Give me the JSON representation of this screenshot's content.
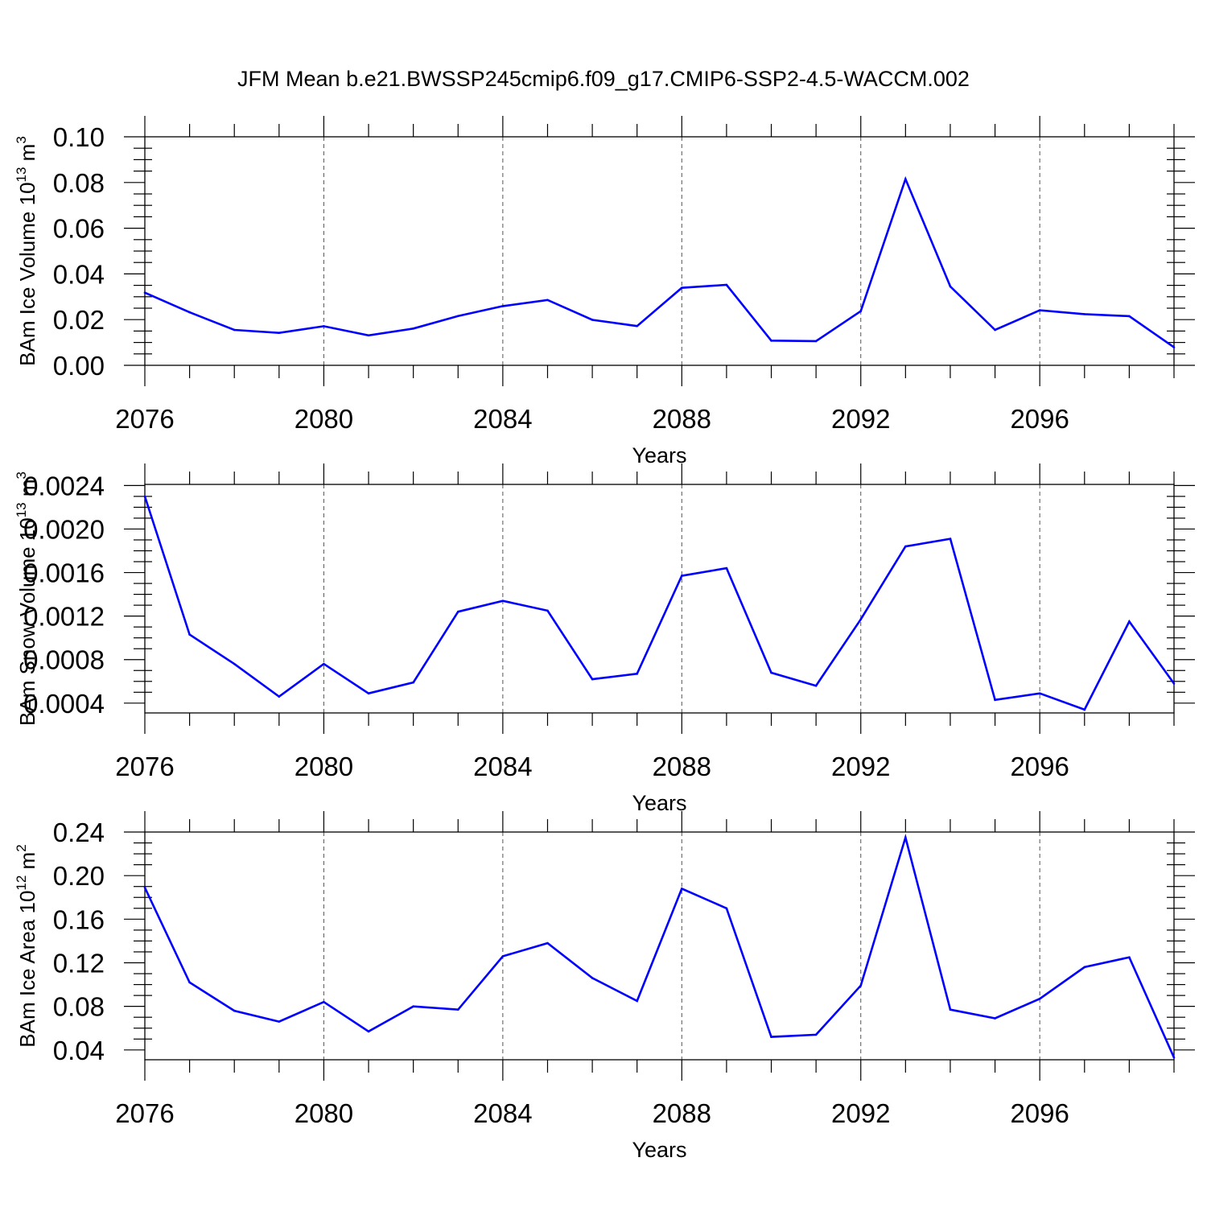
{
  "figure": {
    "title": "JFM Mean b.e21.BWSSP245cmip6.f09_g17.CMIP6-SSP2-4.5-WACCM.002"
  },
  "colors": {
    "series": "#0000ff",
    "axes": "#000000",
    "grid": "#555555"
  },
  "chart_data": [
    {
      "type": "line",
      "ylabel": "BAm Ice Volume 10^13 m^3",
      "ylabel_parts": {
        "base": "BAm Ice Volume 10",
        "exp1": "13",
        "mid": " m",
        "exp2": "3"
      },
      "xlabel": "Years",
      "xlim": [
        2076,
        2099
      ],
      "ylim": [
        0.0,
        0.1
      ],
      "y_ticks": [
        0.0,
        0.02,
        0.04,
        0.06,
        0.08,
        0.1
      ],
      "y_tick_labels": [
        "0.00",
        "0.02",
        "0.04",
        "0.06",
        "0.08",
        "0.10"
      ],
      "y_minor_step": 0.005,
      "x_ticks": [
        2076,
        2080,
        2084,
        2088,
        2092,
        2096
      ],
      "x_tick_labels": [
        "2076",
        "2080",
        "2084",
        "2088",
        "2092",
        "2096"
      ],
      "x_grid": [
        2080,
        2084,
        2088,
        2092,
        2096
      ],
      "x": [
        2076,
        2077,
        2078,
        2079,
        2080,
        2081,
        2082,
        2083,
        2084,
        2085,
        2086,
        2087,
        2088,
        2089,
        2090,
        2091,
        2092,
        2093,
        2094,
        2095,
        2096,
        2097,
        2098,
        2099
      ],
      "series": [
        {
          "name": "BAm Ice Volume",
          "values": [
            0.0318,
            0.0232,
            0.0155,
            0.0142,
            0.0171,
            0.0131,
            0.0161,
            0.0216,
            0.0259,
            0.0286,
            0.0199,
            0.0172,
            0.0339,
            0.0352,
            0.0108,
            0.0106,
            0.0237,
            0.0815,
            0.0345,
            0.0155,
            0.0241,
            0.0224,
            0.0215,
            0.0079
          ]
        }
      ]
    },
    {
      "type": "line",
      "ylabel": "BAm Snow Volume 10^13 m^3",
      "ylabel_parts": {
        "base": "BAm Snow Volume 10",
        "exp1": "13",
        "mid": " m",
        "exp2": "3"
      },
      "xlabel": "Years",
      "xlim": [
        2076,
        2099
      ],
      "ylim": [
        0.00031,
        0.00241
      ],
      "y_ticks": [
        0.0004,
        0.0008,
        0.0012,
        0.0016,
        0.002,
        0.0024
      ],
      "y_tick_labels": [
        "0.0004",
        "0.0008",
        "0.0012",
        "0.0016",
        "0.0020",
        "0.0024"
      ],
      "y_minor_step": 0.0001,
      "x_ticks": [
        2076,
        2080,
        2084,
        2088,
        2092,
        2096
      ],
      "x_tick_labels": [
        "2076",
        "2080",
        "2084",
        "2088",
        "2092",
        "2096"
      ],
      "x_grid": [
        2080,
        2084,
        2088,
        2092,
        2096
      ],
      "x": [
        2076,
        2077,
        2078,
        2079,
        2080,
        2081,
        2082,
        2083,
        2084,
        2085,
        2086,
        2087,
        2088,
        2089,
        2090,
        2091,
        2092,
        2093,
        2094,
        2095,
        2096,
        2097,
        2098,
        2099
      ],
      "series": [
        {
          "name": "BAm Snow Volume",
          "values": [
            0.0023,
            0.00103,
            0.00076,
            0.00046,
            0.00076,
            0.00049,
            0.00059,
            0.00124,
            0.00134,
            0.00125,
            0.00062,
            0.00067,
            0.00157,
            0.00164,
            0.00068,
            0.00056,
            0.00117,
            0.00184,
            0.00191,
            0.00043,
            0.00049,
            0.00034,
            0.00115,
            0.00058
          ]
        }
      ]
    },
    {
      "type": "line",
      "ylabel": "BAm Ice Area 10^12 m^2",
      "ylabel_parts": {
        "base": "BAm Ice Area 10",
        "exp1": "12",
        "mid": " m",
        "exp2": "2"
      },
      "xlabel": "Years",
      "xlim": [
        2076,
        2099
      ],
      "ylim": [
        0.031,
        0.24
      ],
      "y_ticks": [
        0.04,
        0.08,
        0.12,
        0.16,
        0.2,
        0.24
      ],
      "y_tick_labels": [
        "0.04",
        "0.08",
        "0.12",
        "0.16",
        "0.20",
        "0.24"
      ],
      "y_minor_step": 0.01,
      "x_ticks": [
        2076,
        2080,
        2084,
        2088,
        2092,
        2096
      ],
      "x_tick_labels": [
        "2076",
        "2080",
        "2084",
        "2088",
        "2092",
        "2096"
      ],
      "x_grid": [
        2080,
        2084,
        2088,
        2092,
        2096
      ],
      "x": [
        2076,
        2077,
        2078,
        2079,
        2080,
        2081,
        2082,
        2083,
        2084,
        2085,
        2086,
        2087,
        2088,
        2089,
        2090,
        2091,
        2092,
        2093,
        2094,
        2095,
        2096,
        2097,
        2098,
        2099
      ],
      "series": [
        {
          "name": "BAm Ice Area",
          "values": [
            0.189,
            0.102,
            0.076,
            0.066,
            0.084,
            0.057,
            0.08,
            0.077,
            0.126,
            0.138,
            0.106,
            0.085,
            0.188,
            0.17,
            0.052,
            0.054,
            0.099,
            0.235,
            0.077,
            0.069,
            0.087,
            0.116,
            0.125,
            0.033
          ]
        }
      ]
    }
  ]
}
